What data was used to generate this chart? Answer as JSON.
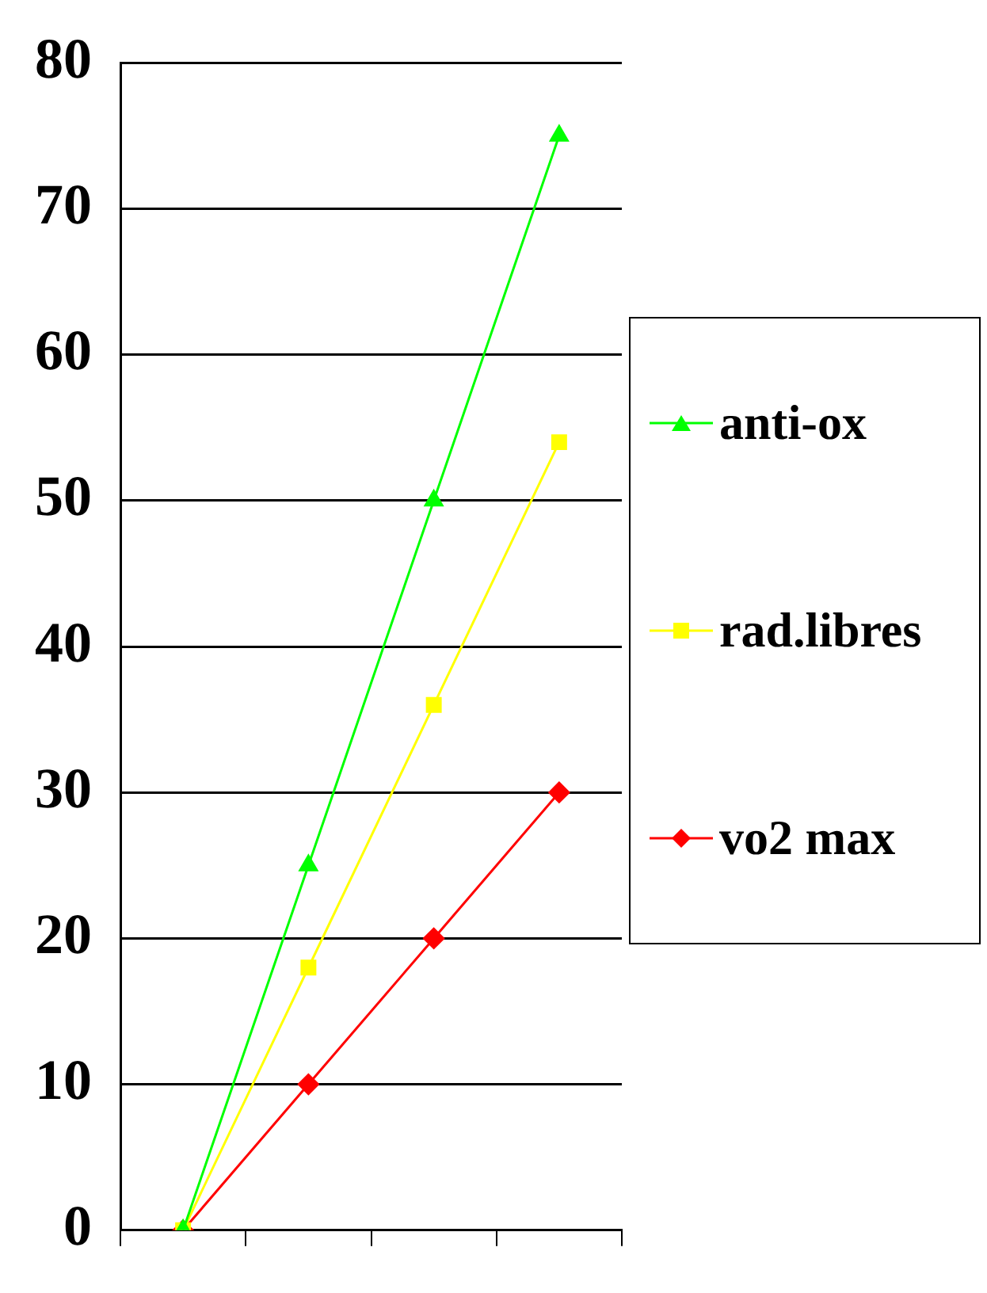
{
  "chart_data": {
    "type": "line",
    "categories": [
      null,
      null,
      null,
      null
    ],
    "series": [
      {
        "name": "anti-ox",
        "color": "#00ff00",
        "marker": "triangle",
        "values": [
          0,
          25,
          50,
          75
        ]
      },
      {
        "name": "rad.libres",
        "color": "#ffff00",
        "marker": "square",
        "values": [
          0,
          18,
          36,
          54
        ]
      },
      {
        "name": "vo2 max",
        "color": "#ff0000",
        "marker": "diamond",
        "values": [
          0,
          10,
          20,
          30
        ]
      }
    ],
    "ylim": [
      0,
      80
    ],
    "yticks": [
      0,
      10,
      20,
      30,
      40,
      50,
      60,
      70,
      80
    ],
    "grid": "y",
    "legend": "right",
    "tick_labels": "y"
  }
}
